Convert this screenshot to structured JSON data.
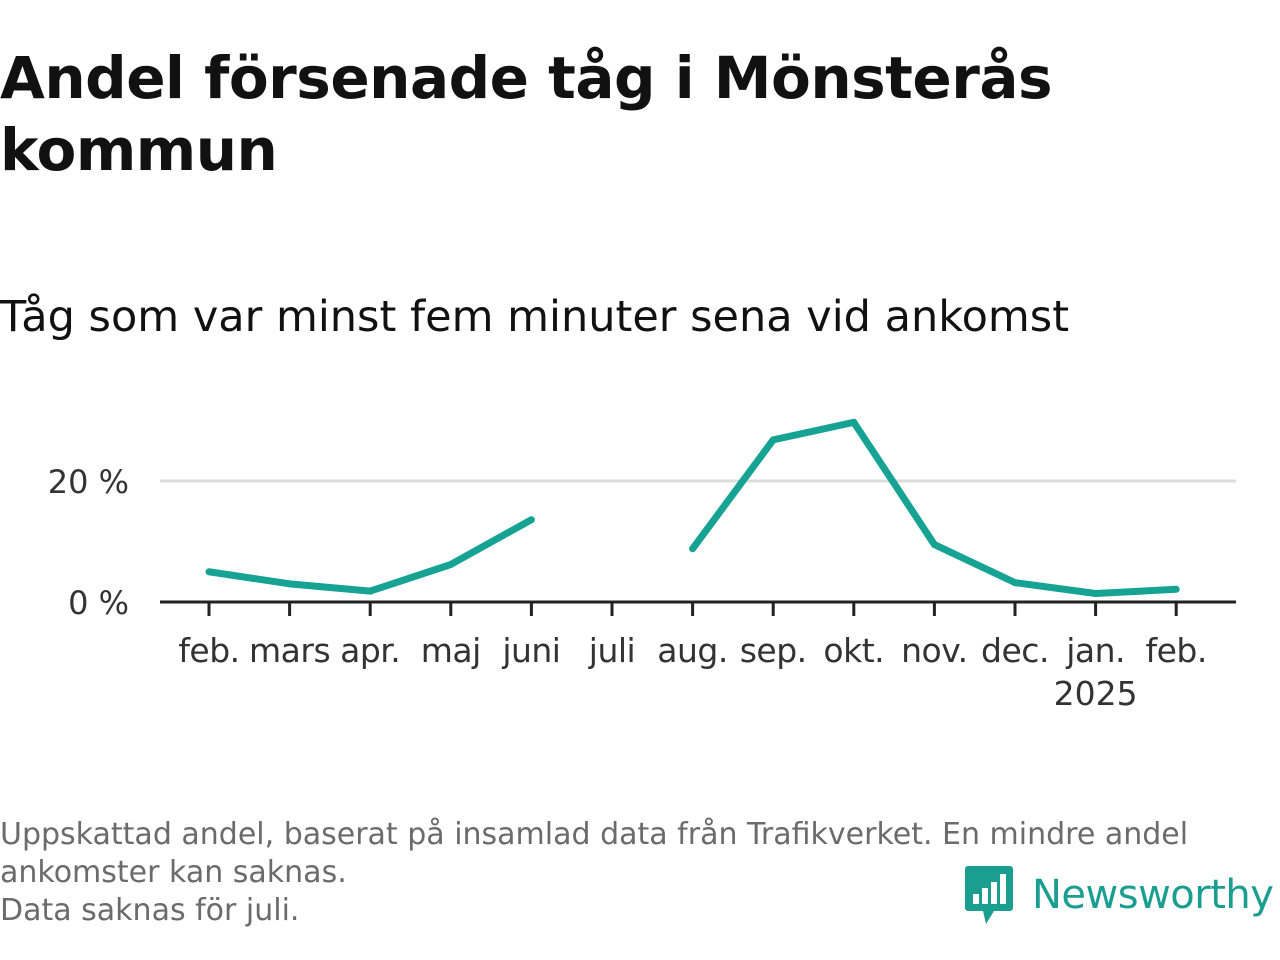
{
  "title": "Andel försenade tåg i Mönsterås kommun",
  "subtitle": "Tåg som var minst fem minuter sena vid ankomst",
  "footnote": {
    "line1": "Uppskattad andel, baserat på insamlad data från Trafikverket. En mindre andel",
    "line2": "ankomster kan saknas.",
    "line3": "Data saknas för juli."
  },
  "brand": {
    "name": "Newsworthy",
    "icon": "newsworthy-logo-icon",
    "color": "#1a9e90"
  },
  "colors": {
    "line": "#16a394",
    "axis": "#222222",
    "grid": "#dcdcdc",
    "text": "#111111",
    "muted": "#6b6b6b"
  },
  "chart_data": {
    "type": "line",
    "categories": [
      "feb.",
      "mars",
      "apr.",
      "maj",
      "juni",
      "juli",
      "aug.",
      "sep.",
      "okt.",
      "nov.",
      "dec.",
      "jan.",
      "feb."
    ],
    "year_labels": [
      "",
      "",
      "",
      "",
      "",
      "",
      "",
      "",
      "",
      "",
      "",
      "2025",
      ""
    ],
    "values": [
      5.0,
      3.0,
      1.8,
      6.2,
      13.6,
      null,
      8.8,
      26.8,
      29.7,
      9.5,
      3.2,
      1.4,
      2.1
    ],
    "unit": "%",
    "yticks": [
      0,
      20
    ],
    "ytick_labels": [
      "0 %",
      "20 %"
    ],
    "ylim": [
      0,
      33
    ],
    "grid": true,
    "legend": "none"
  }
}
